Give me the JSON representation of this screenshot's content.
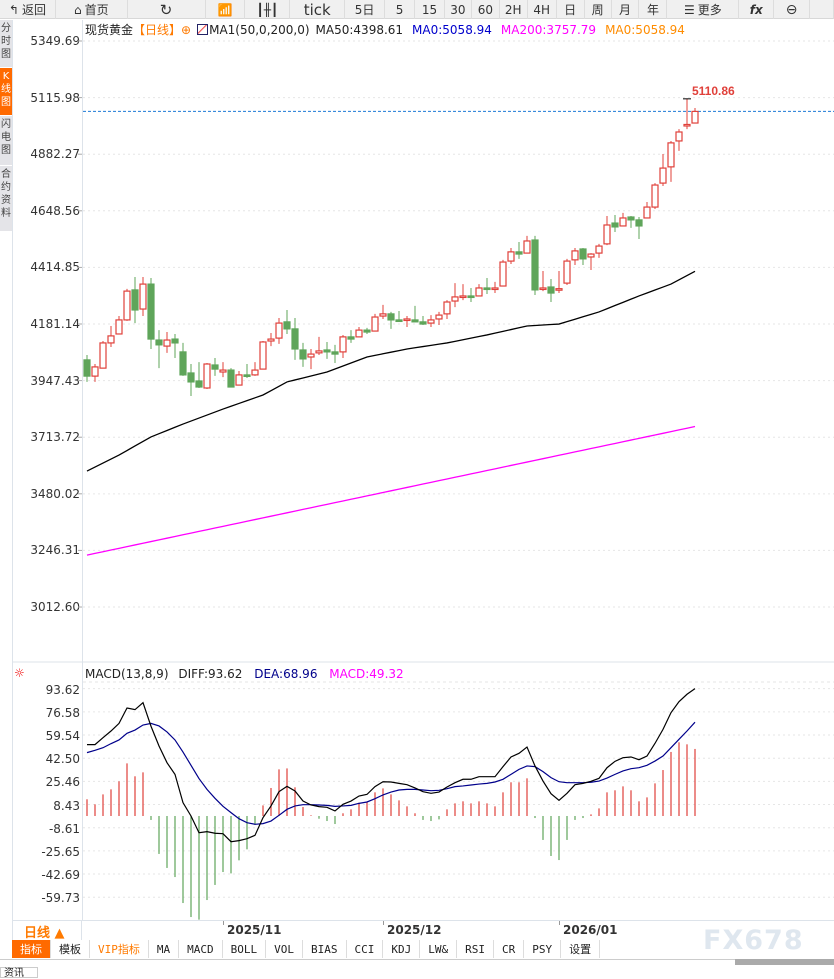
{
  "toolbar": {
    "back": "返回",
    "home": "首页",
    "tick": "tick",
    "five_day": "5日",
    "periods": [
      "5",
      "15",
      "30",
      "60",
      "2H",
      "4H",
      "日",
      "周",
      "月",
      "年"
    ],
    "more": "更多",
    "fx": "fx"
  },
  "left_tabs": [
    "分时图",
    "K线图",
    "闪电图",
    "合约资料"
  ],
  "header": {
    "instrument": "现货黄金",
    "period": "【日线】",
    "indicator": "MA1(50,0,200,0)",
    "ma50": "MA50:4398.61",
    "ma0": "MA0:5058.94",
    "ma200": "MA200:3757.79",
    "ma0b": "MA0:5058.94"
  },
  "macd_header": {
    "name": "MACD(13,8,9)",
    "diff": "DIFF:93.62",
    "dea": "DEA:68.96",
    "macd": "MACD:49.32"
  },
  "colors": {
    "up": "#e0403a",
    "down": "#5fa55a",
    "ma50": "#000000",
    "ma200": "#ff00ff",
    "ma0": "#0000cc",
    "ma0b": "#ff8c00",
    "dea": "#00008b",
    "accent": "#ff6a00",
    "last_price_line": "#1e7bd6"
  },
  "bottom": {
    "daily_button": "日线 ▲",
    "tabs": [
      "指标",
      "模板",
      "VIP指标",
      "MA",
      "MACD",
      "BOLL",
      "VOL",
      "BIAS",
      "CCI",
      "KDJ",
      "LW&",
      "RSI",
      "CR",
      "PSY",
      "设置"
    ],
    "news_tab": "资讯",
    "watermark": "FX678"
  },
  "chart_data": [
    {
      "type": "candlestick",
      "y_ticks": [
        "5349.69",
        "5115.98",
        "4882.27",
        "4648.56",
        "4414.85",
        "4181.14",
        "3947.43",
        "3713.72",
        "3480.02",
        "3246.31",
        "3012.60"
      ],
      "ylim": [
        3012.6,
        5349.69
      ],
      "x_labels": [
        {
          "bar": 17,
          "label": "2025/11"
        },
        {
          "bar": 37,
          "label": "2025/12"
        },
        {
          "bar": 59,
          "label": "2026/01"
        }
      ],
      "high_label": "5110.86",
      "last_price": 5058.94,
      "ohlc": [
        [
          4033,
          4053,
          3942,
          3966
        ],
        [
          3966,
          4016,
          3942,
          4004
        ],
        [
          3999,
          4111,
          3999,
          4103
        ],
        [
          4103,
          4173,
          4086,
          4132
        ],
        [
          4140,
          4214,
          4140,
          4198
        ],
        [
          4198,
          4326,
          4194,
          4317
        ],
        [
          4322,
          4375,
          4185,
          4239
        ],
        [
          4243,
          4375,
          4214,
          4346
        ],
        [
          4346,
          4371,
          4078,
          4119
        ],
        [
          4115,
          4156,
          3999,
          4095
        ],
        [
          4090,
          4148,
          4062,
          4115
        ],
        [
          4119,
          4140,
          4041,
          4103
        ],
        [
          4066,
          4103,
          3967,
          3971
        ],
        [
          3979,
          4016,
          3884,
          3942
        ],
        [
          3946,
          4024,
          3917,
          3921
        ],
        [
          3917,
          4020,
          3913,
          4016
        ],
        [
          4012,
          4041,
          3967,
          3995
        ],
        [
          3983,
          4024,
          3962,
          3991
        ],
        [
          3991,
          3999,
          3921,
          3921
        ],
        [
          3929,
          3987,
          3929,
          3971
        ],
        [
          3971,
          4016,
          3958,
          3967
        ],
        [
          3971,
          4024,
          3967,
          3991
        ],
        [
          3995,
          4111,
          3995,
          4107
        ],
        [
          4111,
          4144,
          4090,
          4119
        ],
        [
          4123,
          4206,
          4099,
          4185
        ],
        [
          4190,
          4239,
          4140,
          4161
        ],
        [
          4161,
          4206,
          4033,
          4078
        ],
        [
          4074,
          4103,
          4004,
          4037
        ],
        [
          4045,
          4078,
          3995,
          4057
        ],
        [
          4062,
          4128,
          4053,
          4070
        ],
        [
          4074,
          4107,
          4037,
          4066
        ],
        [
          4066,
          4095,
          4020,
          4057
        ],
        [
          4066,
          4136,
          4041,
          4128
        ],
        [
          4128,
          4156,
          4103,
          4119
        ],
        [
          4128,
          4169,
          4128,
          4156
        ],
        [
          4156,
          4165,
          4140,
          4148
        ],
        [
          4152,
          4223,
          4152,
          4210
        ],
        [
          4214,
          4260,
          4202,
          4223
        ],
        [
          4223,
          4231,
          4161,
          4198
        ],
        [
          4198,
          4235,
          4194,
          4194
        ],
        [
          4198,
          4214,
          4169,
          4202
        ],
        [
          4198,
          4256,
          4190,
          4190
        ],
        [
          4190,
          4214,
          4177,
          4181
        ],
        [
          4185,
          4218,
          4169,
          4198
        ],
        [
          4202,
          4231,
          4177,
          4218
        ],
        [
          4223,
          4280,
          4202,
          4272
        ],
        [
          4276,
          4350,
          4251,
          4293
        ],
        [
          4293,
          4346,
          4280,
          4297
        ],
        [
          4297,
          4330,
          4272,
          4293
        ],
        [
          4297,
          4346,
          4297,
          4330
        ],
        [
          4330,
          4371,
          4305,
          4326
        ],
        [
          4326,
          4355,
          4309,
          4330
        ],
        [
          4338,
          4446,
          4338,
          4437
        ],
        [
          4441,
          4495,
          4429,
          4479
        ],
        [
          4479,
          4520,
          4450,
          4470
        ],
        [
          4474,
          4545,
          4474,
          4524
        ],
        [
          4528,
          4545,
          4301,
          4322
        ],
        [
          4326,
          4400,
          4317,
          4330
        ],
        [
          4334,
          4367,
          4272,
          4309
        ],
        [
          4325,
          4400,
          4309,
          4327
        ],
        [
          4350,
          4450,
          4342,
          4441
        ],
        [
          4446,
          4495,
          4425,
          4483
        ],
        [
          4491,
          4495,
          4425,
          4450
        ],
        [
          4458,
          4474,
          4404,
          4470
        ],
        [
          4474,
          4512,
          4454,
          4503
        ],
        [
          4512,
          4627,
          4507,
          4590
        ],
        [
          4598,
          4631,
          4561,
          4582
        ],
        [
          4586,
          4640,
          4586,
          4619
        ],
        [
          4623,
          4627,
          4578,
          4611
        ],
        [
          4611,
          4623,
          4532,
          4586
        ],
        [
          4619,
          4685,
          4619,
          4664
        ],
        [
          4664,
          4763,
          4656,
          4755
        ],
        [
          4763,
          4883,
          4751,
          4825
        ],
        [
          4830,
          4937,
          4768,
          4929
        ],
        [
          4937,
          4986,
          4896,
          4974
        ],
        [
          5000,
          5110.86,
          4986,
          5005
        ],
        [
          5011,
          5073,
          5011,
          5058.94
        ]
      ],
      "ma50": [
        [
          0,
          3574
        ],
        [
          4,
          3640
        ],
        [
          8,
          3715
        ],
        [
          12,
          3768
        ],
        [
          17,
          3830
        ],
        [
          22,
          3888
        ],
        [
          25,
          3942
        ],
        [
          30,
          3983
        ],
        [
          35,
          4045
        ],
        [
          40,
          4078
        ],
        [
          45,
          4103
        ],
        [
          50,
          4136
        ],
        [
          55,
          4173
        ],
        [
          59,
          4181
        ],
        [
          64,
          4231
        ],
        [
          69,
          4297
        ],
        [
          73,
          4346
        ],
        [
          76,
          4398.61
        ]
      ],
      "ma200": [
        [
          0,
          3227
        ],
        [
          76,
          3757.79
        ]
      ]
    },
    {
      "type": "macd",
      "y_ticks": [
        "93.62",
        "76.58",
        "59.54",
        "42.50",
        "25.46",
        "8.43",
        "-8.61",
        "-25.65",
        "-42.69",
        "-59.73"
      ],
      "ylim": [
        -76.77,
        93.62
      ],
      "diff": [
        52.5,
        52.5,
        57.6,
        62.5,
        68.1,
        79.4,
        78.2,
        83.3,
        66,
        51.5,
        39.2,
        30.6,
        9.8,
        0,
        -12.3,
        -11.5,
        -12.7,
        -13,
        -18.9,
        -18.1,
        -16.7,
        -14.2,
        -1.2,
        7.4,
        17.9,
        21.8,
        18.4,
        11,
        8.1,
        6.9,
        6.4,
        3.7,
        8.6,
        11,
        14.7,
        15.9,
        21.6,
        25.2,
        25,
        24,
        23,
        20.6,
        17.9,
        16.7,
        17.6,
        21.3,
        24.5,
        27,
        27,
        28.9,
        28.9,
        28.9,
        36.3,
        43.4,
        46.1,
        50.7,
        36.8,
        25.7,
        16.4,
        11.5,
        16.7,
        23,
        24,
        25.5,
        27.7,
        35.5,
        40.2,
        42.9,
        43.4,
        41.4,
        44.1,
        53.4,
        63.7,
        76,
        84.1,
        89.5,
        93.62
      ],
      "dea": [
        46.6,
        48.3,
        50.2,
        53.2,
        55.9,
        60.8,
        63.2,
        66.9,
        68.1,
        66.2,
        61.8,
        55.9,
        47,
        37.3,
        27.5,
        19.6,
        13,
        7.1,
        2.5,
        -2,
        -4.9,
        -6.1,
        -5.6,
        -3.7,
        0.5,
        4.9,
        7.4,
        8.3,
        8.3,
        8.1,
        7.8,
        7.1,
        7.4,
        7.8,
        9.3,
        10.3,
        12.7,
        15.5,
        17.6,
        19.1,
        19.6,
        19.6,
        19.1,
        18.6,
        18.9,
        20.1,
        21.6,
        22.1,
        22.8,
        23.5,
        24,
        25,
        27,
        30.6,
        34.3,
        36.8,
        36.3,
        32.6,
        28.2,
        25.2,
        24.5,
        24.5,
        24.5,
        24.8,
        25.7,
        27.9,
        30.6,
        33.1,
        34.8,
        35.5,
        37.3,
        40.4,
        44.1,
        50.2,
        56.4,
        62.5,
        68.96
      ],
      "macd": [
        12.3,
        8.6,
        15.9,
        19.6,
        25.5,
        38.7,
        29.2,
        32.1,
        -2.9,
        -27.9,
        -38.2,
        -44.9,
        -64,
        -74.3,
        -76.2,
        -61.8,
        -50.7,
        -41.2,
        -42.2,
        -32.6,
        -24.5,
        -6.4,
        7.8,
        20.6,
        34.3,
        35,
        21.1,
        6.6,
        0.5,
        -2,
        -3.7,
        -5.9,
        2,
        4.9,
        9.8,
        10.5,
        17.4,
        20.3,
        15.9,
        11.5,
        7.1,
        2,
        -2.9,
        -3.7,
        -2.5,
        4.9,
        9.3,
        10.8,
        9.3,
        10.8,
        9.3,
        7.1,
        17.4,
        24.8,
        24.8,
        27.7,
        -1.5,
        -17.6,
        -29.4,
        -32.4,
        -17.6,
        -2.9,
        -1.5,
        1.2,
        5.6,
        17.4,
        18.9,
        21.8,
        18.9,
        10.8,
        13.7,
        24,
        33.8,
        47.1,
        54.2,
        52.7,
        49.32
      ]
    }
  ]
}
